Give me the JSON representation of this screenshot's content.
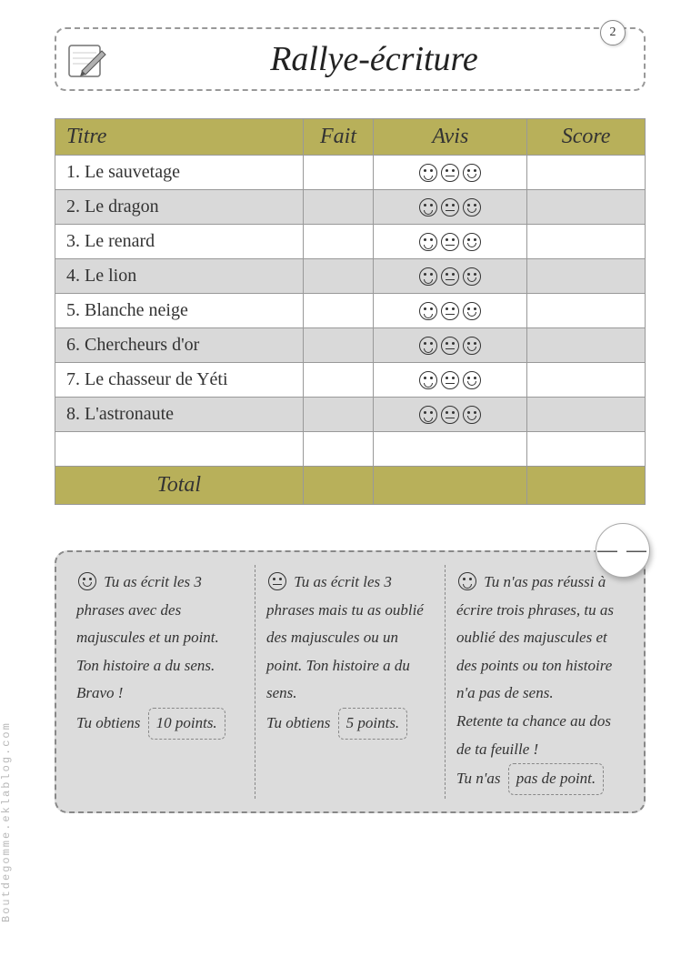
{
  "header": {
    "title": "Rallye-écriture",
    "page_number": "2"
  },
  "table": {
    "columns": [
      "Titre",
      "Fait",
      "Avis",
      "Score"
    ],
    "column_widths_pct": [
      42,
      12,
      26,
      20
    ],
    "header_bg": "#b8b05a",
    "row_alt_bg": "#d9d9d9",
    "row_bg": "#ffffff",
    "border_color": "#999999",
    "rows": [
      {
        "n": "1",
        "title": "Le sauvetage"
      },
      {
        "n": "2",
        "title": "Le dragon"
      },
      {
        "n": "3",
        "title": "Le renard"
      },
      {
        "n": "4",
        "title": "Le lion"
      },
      {
        "n": "5",
        "title": "Blanche neige"
      },
      {
        "n": "6",
        "title": "Chercheurs d'or"
      },
      {
        "n": "7",
        "title": "Le chasseur de Yéti"
      },
      {
        "n": "8",
        "title": "L'astronaute"
      }
    ],
    "blank_rows": 1,
    "total_label": "Total",
    "avis_faces": [
      "sad",
      "neutral",
      "happy"
    ]
  },
  "rubric": {
    "bg": "#dcdcdc",
    "border_color": "#888888",
    "corner_glyph": "— —",
    "cols": [
      {
        "face": "happy",
        "text": "Tu as écrit les 3 phrases avec des majuscules et un point. Ton histoire a du sens.",
        "bravo": "Bravo !",
        "obtain": "Tu obtiens",
        "points": "10 points."
      },
      {
        "face": "neutral",
        "text": "Tu as écrit les 3 phrases mais tu as oublié des majuscules ou un point. Ton histoire a du sens.",
        "bravo": "",
        "obtain": "Tu obtiens",
        "points": "5 points."
      },
      {
        "face": "sad",
        "text": "Tu n'as pas réussi à écrire trois phrases, tu as oublié des majuscules et des points ou ton histoire n'a pas de sens.",
        "bravo": "Retente ta chance au dos de ta feuille !",
        "obtain": "Tu n'as",
        "points": "pas de point."
      }
    ]
  },
  "watermark": "Boutdegomme.eklablog.com",
  "colors": {
    "page_bg": "#ffffff",
    "text": "#333333"
  },
  "fonts": {
    "script": "Brush Script MT, cursive",
    "title_size_pt": 38,
    "header_cell_size_pt": 24,
    "body_size_pt": 20,
    "rubric_size_pt": 17
  }
}
